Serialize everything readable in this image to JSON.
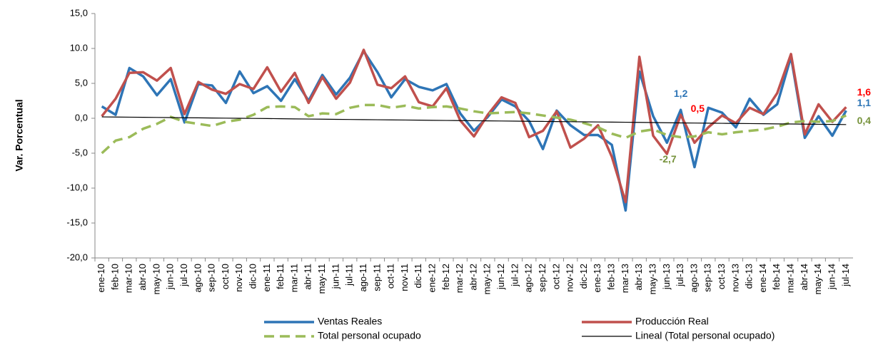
{
  "chart_data": {
    "type": "line",
    "y_label": "Var. Porcentual",
    "categories": [
      "ene-10",
      "feb-10",
      "mar-10",
      "abr-10",
      "may-10",
      "jun-10",
      "jul-10",
      "ago-10",
      "sep-10",
      "oct-10",
      "nov-10",
      "dic-10",
      "ene-11",
      "feb-11",
      "mar-11",
      "abr-11",
      "may-11",
      "jun-11",
      "jul-11",
      "ago-11",
      "sep-11",
      "oct-11",
      "nov-11",
      "dic-11",
      "ene-12",
      "feb-12",
      "mar-12",
      "abr-12",
      "may-12",
      "jun-12",
      "jul-12",
      "ago-12",
      "sep-12",
      "oct-12",
      "nov-12",
      "dic-12",
      "ene-13",
      "feb-13",
      "mar-13",
      "abr-13",
      "may-13",
      "jun-13",
      "jul-13",
      "ago-13",
      "sep-13",
      "oct-13",
      "nov-13",
      "dic-13",
      "ene-14",
      "feb-14",
      "mar-14",
      "abr-14",
      "may-14",
      "jun-14",
      "jul-14"
    ],
    "ylim": [
      -20,
      15
    ],
    "yticks": [
      {
        "value": 15,
        "label": "15,0"
      },
      {
        "value": 10,
        "label": "10.0"
      },
      {
        "value": 5,
        "label": "5,0"
      },
      {
        "value": 0,
        "label": "0,0"
      },
      {
        "value": -5,
        "label": "-5,0"
      },
      {
        "value": -10,
        "label": "-10,0"
      },
      {
        "value": -15,
        "label": "-15,0"
      },
      {
        "value": -20,
        "label": "-20,0"
      }
    ],
    "series": [
      {
        "name": "Ventas Reales",
        "color": "#2e75b6",
        "label_color": "#2e75b6",
        "style": "solid",
        "width": 3.5,
        "values": [
          1.7,
          0.5,
          7.2,
          6.0,
          3.3,
          5.6,
          -0.6,
          4.9,
          4.7,
          2.2,
          6.7,
          3.6,
          4.6,
          2.5,
          5.6,
          2.5,
          6.2,
          3.4,
          5.8,
          9.6,
          6.6,
          3.0,
          5.6,
          4.5,
          4.0,
          4.9,
          0.7,
          -1.8,
          0.2,
          2.7,
          1.7,
          -0.4,
          -4.4,
          1.1,
          -1.0,
          -2.4,
          -2.4,
          -3.8,
          -13.2,
          6.7,
          0.3,
          -3.5,
          1.2,
          -7.0,
          1.5,
          0.8,
          -1.3,
          2.8,
          0.5,
          2.0,
          8.8,
          -2.8,
          0.3,
          -2.5,
          1.1
        ],
        "value_labels": [
          null,
          null,
          null,
          null,
          null,
          null,
          null,
          null,
          null,
          null,
          null,
          null,
          null,
          null,
          null,
          null,
          null,
          null,
          null,
          null,
          null,
          null,
          null,
          null,
          null,
          null,
          null,
          null,
          null,
          null,
          null,
          null,
          null,
          null,
          null,
          null,
          null,
          null,
          null,
          null,
          null,
          null,
          "1,2",
          null,
          null,
          null,
          null,
          null,
          null,
          null,
          null,
          null,
          null,
          null,
          "1,1"
        ]
      },
      {
        "name": "Producción Real",
        "color": "#c0504d",
        "label_color": "#ff0000",
        "style": "solid",
        "width": 3.5,
        "values": [
          0.3,
          2.8,
          6.5,
          6.6,
          5.4,
          7.2,
          0.6,
          5.2,
          4.1,
          3.5,
          4.9,
          4.2,
          7.3,
          3.8,
          6.5,
          2.2,
          5.9,
          2.8,
          5.1,
          9.8,
          4.8,
          4.3,
          6.0,
          2.3,
          1.7,
          4.3,
          -0.3,
          -2.6,
          0.5,
          3.0,
          2.2,
          -2.7,
          -1.8,
          1.0,
          -4.2,
          -2.9,
          -1.0,
          -5.5,
          -12.0,
          8.8,
          -2.5,
          -5.1,
          0.5,
          -3.5,
          -1.3,
          0.4,
          -0.7,
          1.5,
          0.6,
          3.6,
          9.2,
          -2.3,
          2.0,
          -0.5,
          1.6
        ],
        "value_labels": [
          null,
          null,
          null,
          null,
          null,
          null,
          null,
          null,
          null,
          null,
          null,
          null,
          null,
          null,
          null,
          null,
          null,
          null,
          null,
          null,
          null,
          null,
          null,
          null,
          null,
          null,
          null,
          null,
          null,
          null,
          null,
          null,
          null,
          null,
          null,
          null,
          null,
          null,
          null,
          null,
          null,
          null,
          "0,5",
          null,
          null,
          null,
          null,
          null,
          null,
          null,
          null,
          null,
          null,
          null,
          "1,6"
        ]
      },
      {
        "name": "Total personal  ocupado",
        "color": "#9bbb59",
        "label_color": "#77933c",
        "style": "dashed",
        "width": 3.5,
        "values": [
          -5.0,
          -3.2,
          -2.7,
          -1.5,
          -0.8,
          0.2,
          -0.5,
          -0.8,
          -1.1,
          -0.5,
          -0.2,
          0.5,
          1.6,
          1.7,
          1.6,
          0.3,
          0.7,
          0.6,
          1.5,
          1.9,
          1.9,
          1.5,
          1.8,
          1.4,
          1.6,
          1.7,
          1.4,
          1.0,
          0.7,
          0.8,
          0.9,
          0.7,
          0.4,
          0.1,
          -0.2,
          -0.7,
          -1.3,
          -2.2,
          -2.8,
          -1.9,
          -1.6,
          -2.4,
          -2.7,
          -2.6,
          -2.0,
          -2.3,
          -2.0,
          -1.8,
          -1.6,
          -1.2,
          -0.6,
          -0.4,
          -0.5,
          -0.4,
          0.4
        ],
        "value_labels": [
          null,
          null,
          null,
          null,
          null,
          null,
          null,
          null,
          null,
          null,
          null,
          null,
          null,
          null,
          null,
          null,
          null,
          null,
          null,
          null,
          null,
          null,
          null,
          null,
          null,
          null,
          null,
          null,
          null,
          null,
          null,
          null,
          null,
          null,
          null,
          null,
          null,
          null,
          null,
          null,
          null,
          null,
          "-2,7",
          null,
          null,
          null,
          null,
          null,
          null,
          null,
          null,
          null,
          null,
          null,
          "0,4"
        ]
      },
      {
        "name": "Lineal (Total personal  ocupado)",
        "color": "#000000",
        "style": "solid",
        "width": 1.2,
        "values": [
          0.2,
          0.18,
          0.16,
          0.14,
          0.12,
          0.1,
          0.08,
          0.06,
          0.04,
          0.02,
          0.0,
          -0.02,
          -0.04,
          -0.06,
          -0.09,
          -0.11,
          -0.13,
          -0.15,
          -0.17,
          -0.19,
          -0.21,
          -0.23,
          -0.25,
          -0.27,
          -0.29,
          -0.31,
          -0.33,
          -0.35,
          -0.37,
          -0.39,
          -0.41,
          -0.43,
          -0.45,
          -0.47,
          -0.49,
          -0.51,
          -0.53,
          -0.55,
          -0.57,
          -0.59,
          -0.61,
          -0.64,
          -0.66,
          -0.68,
          -0.7,
          -0.72,
          -0.74,
          -0.76,
          -0.78,
          -0.8,
          -0.82,
          -0.84,
          -0.86,
          -0.88,
          -0.9
        ]
      }
    ]
  }
}
